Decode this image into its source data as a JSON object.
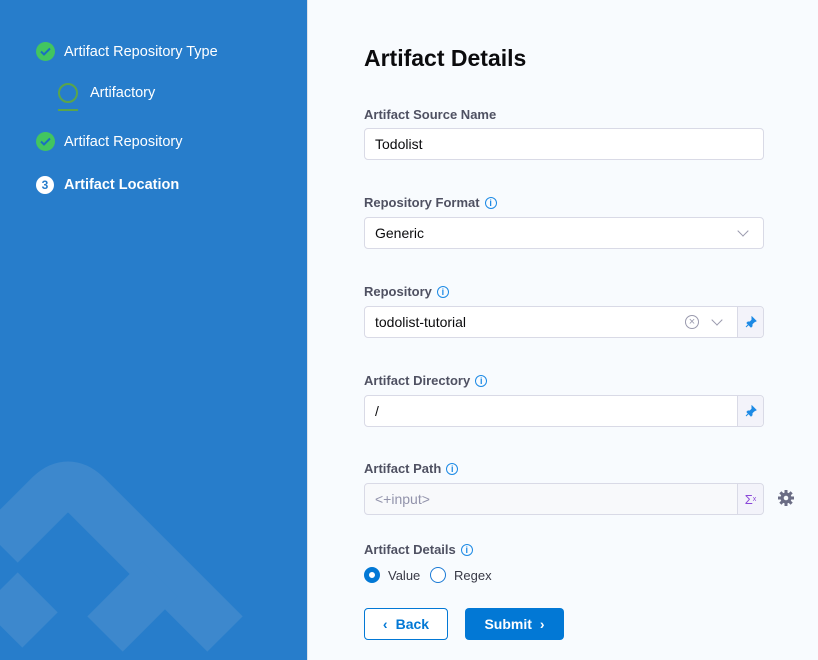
{
  "sidebar": {
    "steps": [
      {
        "label": "Artifact Repository Type",
        "status": "completed"
      },
      {
        "label": "Artifactory",
        "status": "sub-selected"
      },
      {
        "label": "Artifact Repository",
        "status": "completed"
      },
      {
        "label": "Artifact Location",
        "status": "current",
        "number": "3"
      }
    ]
  },
  "form": {
    "title": "Artifact Details",
    "source_name": {
      "label": "Artifact Source Name",
      "value": "Todolist"
    },
    "repository_format": {
      "label": "Repository Format",
      "value": "Generic"
    },
    "repository": {
      "label": "Repository",
      "value": "todolist-tutorial"
    },
    "artifact_directory": {
      "label": "Artifact Directory",
      "value": "/"
    },
    "artifact_path": {
      "label": "Artifact Path",
      "placeholder": "<+input>"
    },
    "artifact_details": {
      "label": "Artifact Details",
      "options": [
        "Value",
        "Regex"
      ],
      "selected": "Value"
    },
    "back_label": "Back",
    "submit_label": "Submit"
  },
  "colors": {
    "sidebar": "#277dcb",
    "primary": "#0278d5",
    "success": "#42c560"
  }
}
